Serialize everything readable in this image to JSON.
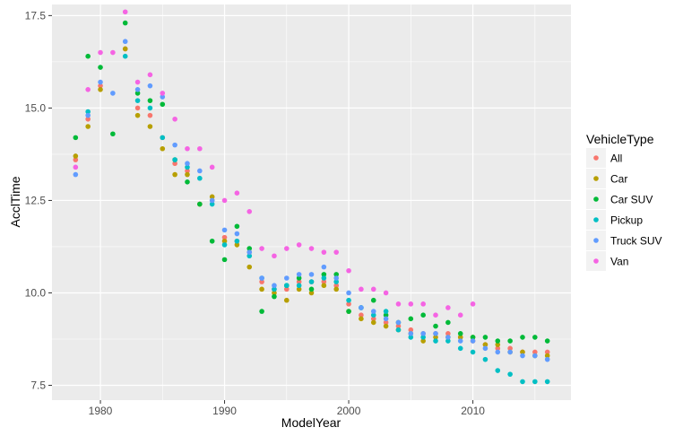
{
  "chart_data": {
    "type": "scatter",
    "xlabel": "ModelYear",
    "ylabel": "AcclTime",
    "xlim": [
      1976.1,
      2017.9
    ],
    "ylim": [
      7.1,
      17.8
    ],
    "xticks": [
      1980,
      1990,
      2000,
      2010
    ],
    "yticks": [
      7.5,
      10.0,
      12.5,
      15.0,
      17.5
    ],
    "grid": true,
    "background": "#ebebeb",
    "legend": {
      "title": "VehicleType",
      "position": "right"
    },
    "series": [
      {
        "name": "All",
        "color": "#F8766D",
        "points": [
          [
            1978,
            13.6
          ],
          [
            1979,
            14.7
          ],
          [
            1980,
            15.6
          ],
          [
            1982,
            16.6
          ],
          [
            1983,
            15.0
          ],
          [
            1984,
            14.8
          ],
          [
            1985,
            14.2
          ],
          [
            1986,
            13.5
          ],
          [
            1987,
            13.3
          ],
          [
            1988,
            12.4
          ],
          [
            1989,
            12.5
          ],
          [
            1990,
            11.5
          ],
          [
            1991,
            11.4
          ],
          [
            1992,
            11.1
          ],
          [
            1993,
            10.3
          ],
          [
            1994,
            10.1
          ],
          [
            1995,
            10.1
          ],
          [
            1996,
            10.3
          ],
          [
            1997,
            10.3
          ],
          [
            1998,
            10.3
          ],
          [
            1999,
            10.2
          ],
          [
            2000,
            9.7
          ],
          [
            2001,
            9.4
          ],
          [
            2002,
            9.3
          ],
          [
            2003,
            9.2
          ],
          [
            2004,
            9.1
          ],
          [
            2005,
            9.0
          ],
          [
            2006,
            8.9
          ],
          [
            2007,
            8.9
          ],
          [
            2008,
            8.9
          ],
          [
            2009,
            8.8
          ],
          [
            2010,
            8.7
          ],
          [
            2011,
            8.6
          ],
          [
            2012,
            8.5
          ],
          [
            2013,
            8.5
          ],
          [
            2014,
            8.4
          ],
          [
            2015,
            8.4
          ],
          [
            2016,
            8.4
          ]
        ]
      },
      {
        "name": "Car",
        "color": "#B79F00",
        "points": [
          [
            1978,
            13.7
          ],
          [
            1979,
            14.5
          ],
          [
            1980,
            15.5
          ],
          [
            1982,
            16.6
          ],
          [
            1983,
            14.8
          ],
          [
            1984,
            14.5
          ],
          [
            1985,
            13.9
          ],
          [
            1986,
            13.2
          ],
          [
            1987,
            13.2
          ],
          [
            1988,
            12.4
          ],
          [
            1989,
            12.6
          ],
          [
            1990,
            11.4
          ],
          [
            1991,
            11.3
          ],
          [
            1992,
            10.7
          ],
          [
            1993,
            10.1
          ],
          [
            1994,
            10.0
          ],
          [
            1995,
            9.8
          ],
          [
            1996,
            10.1
          ],
          [
            1997,
            10.0
          ],
          [
            1998,
            10.2
          ],
          [
            1999,
            10.1
          ],
          [
            2000,
            9.5
          ],
          [
            2001,
            9.3
          ],
          [
            2002,
            9.2
          ],
          [
            2003,
            9.1
          ],
          [
            2004,
            9.0
          ],
          [
            2005,
            8.9
          ],
          [
            2006,
            8.7
          ],
          [
            2007,
            8.8
          ],
          [
            2008,
            8.8
          ],
          [
            2009,
            8.8
          ],
          [
            2010,
            8.8
          ],
          [
            2011,
            8.6
          ],
          [
            2012,
            8.6
          ],
          [
            2013,
            8.4
          ],
          [
            2014,
            8.4
          ],
          [
            2015,
            8.3
          ],
          [
            2016,
            8.3
          ]
        ]
      },
      {
        "name": "Car SUV",
        "color": "#00BA38",
        "points": [
          [
            1978,
            14.2
          ],
          [
            1979,
            16.4
          ],
          [
            1980,
            16.1
          ],
          [
            1981,
            14.3
          ],
          [
            1982,
            17.3
          ],
          [
            1983,
            15.4
          ],
          [
            1984,
            15.2
          ],
          [
            1985,
            15.1
          ],
          [
            1986,
            13.6
          ],
          [
            1987,
            13.0
          ],
          [
            1988,
            12.4
          ],
          [
            1989,
            11.4
          ],
          [
            1990,
            10.9
          ],
          [
            1991,
            11.8
          ],
          [
            1992,
            11.2
          ],
          [
            1993,
            9.5
          ],
          [
            1994,
            9.9
          ],
          [
            1995,
            10.2
          ],
          [
            1996,
            10.4
          ],
          [
            1997,
            10.1
          ],
          [
            1998,
            10.5
          ],
          [
            1999,
            10.5
          ],
          [
            2000,
            9.5
          ],
          [
            2001,
            9.6
          ],
          [
            2002,
            9.8
          ],
          [
            2003,
            9.4
          ],
          [
            2004,
            9.2
          ],
          [
            2005,
            9.3
          ],
          [
            2006,
            9.4
          ],
          [
            2007,
            9.1
          ],
          [
            2008,
            9.2
          ],
          [
            2009,
            8.9
          ],
          [
            2010,
            8.8
          ],
          [
            2011,
            8.8
          ],
          [
            2012,
            8.7
          ],
          [
            2013,
            8.7
          ],
          [
            2014,
            8.8
          ],
          [
            2015,
            8.8
          ],
          [
            2016,
            8.7
          ]
        ]
      },
      {
        "name": "Pickup",
        "color": "#00BFC4",
        "points": [
          [
            1979,
            14.9
          ],
          [
            1982,
            16.4
          ],
          [
            1983,
            15.2
          ],
          [
            1984,
            15.0
          ],
          [
            1985,
            14.2
          ],
          [
            1986,
            13.6
          ],
          [
            1987,
            13.4
          ],
          [
            1988,
            13.1
          ],
          [
            1989,
            12.4
          ],
          [
            1990,
            11.3
          ],
          [
            1991,
            11.4
          ],
          [
            1992,
            11.0
          ],
          [
            1993,
            10.4
          ],
          [
            1994,
            10.1
          ],
          [
            1995,
            10.2
          ],
          [
            1996,
            10.2
          ],
          [
            1997,
            10.3
          ],
          [
            1998,
            10.4
          ],
          [
            1999,
            10.3
          ],
          [
            2000,
            9.8
          ],
          [
            2001,
            9.6
          ],
          [
            2002,
            9.4
          ],
          [
            2003,
            9.5
          ],
          [
            2004,
            9.0
          ],
          [
            2005,
            8.8
          ],
          [
            2006,
            8.8
          ],
          [
            2007,
            8.7
          ],
          [
            2008,
            8.7
          ],
          [
            2009,
            8.5
          ],
          [
            2010,
            8.4
          ],
          [
            2011,
            8.2
          ],
          [
            2012,
            7.9
          ],
          [
            2013,
            7.8
          ],
          [
            2014,
            7.6
          ],
          [
            2015,
            7.6
          ],
          [
            2016,
            7.6
          ]
        ]
      },
      {
        "name": "Truck SUV",
        "color": "#619CFF",
        "points": [
          [
            1978,
            13.2
          ],
          [
            1979,
            14.8
          ],
          [
            1980,
            15.7
          ],
          [
            1981,
            15.4
          ],
          [
            1982,
            16.8
          ],
          [
            1983,
            15.5
          ],
          [
            1984,
            15.6
          ],
          [
            1985,
            15.3
          ],
          [
            1986,
            14.0
          ],
          [
            1987,
            13.5
          ],
          [
            1988,
            13.3
          ],
          [
            1989,
            12.5
          ],
          [
            1990,
            11.7
          ],
          [
            1991,
            11.6
          ],
          [
            1992,
            11.1
          ],
          [
            1993,
            10.4
          ],
          [
            1994,
            10.2
          ],
          [
            1995,
            10.4
          ],
          [
            1996,
            10.5
          ],
          [
            1997,
            10.5
          ],
          [
            1998,
            10.7
          ],
          [
            1999,
            10.4
          ],
          [
            2000,
            10.0
          ],
          [
            2001,
            9.6
          ],
          [
            2002,
            9.5
          ],
          [
            2003,
            9.3
          ],
          [
            2004,
            9.2
          ],
          [
            2005,
            8.9
          ],
          [
            2006,
            8.9
          ],
          [
            2007,
            8.9
          ],
          [
            2008,
            8.8
          ],
          [
            2009,
            8.7
          ],
          [
            2010,
            8.7
          ],
          [
            2011,
            8.5
          ],
          [
            2012,
            8.4
          ],
          [
            2013,
            8.4
          ],
          [
            2014,
            8.3
          ],
          [
            2015,
            8.3
          ],
          [
            2016,
            8.2
          ]
        ]
      },
      {
        "name": "Van",
        "color": "#F564E3",
        "points": [
          [
            1978,
            13.4
          ],
          [
            1979,
            15.5
          ],
          [
            1980,
            16.5
          ],
          [
            1981,
            16.5
          ],
          [
            1982,
            17.6
          ],
          [
            1983,
            15.7
          ],
          [
            1984,
            15.9
          ],
          [
            1985,
            15.4
          ],
          [
            1986,
            14.7
          ],
          [
            1987,
            13.9
          ],
          [
            1988,
            13.9
          ],
          [
            1989,
            13.4
          ],
          [
            1990,
            12.5
          ],
          [
            1991,
            12.7
          ],
          [
            1992,
            12.2
          ],
          [
            1993,
            11.2
          ],
          [
            1994,
            11.0
          ],
          [
            1995,
            11.2
          ],
          [
            1996,
            11.3
          ],
          [
            1997,
            11.2
          ],
          [
            1998,
            11.1
          ],
          [
            1999,
            11.1
          ],
          [
            2000,
            10.6
          ],
          [
            2001,
            10.1
          ],
          [
            2002,
            10.1
          ],
          [
            2003,
            10.0
          ],
          [
            2004,
            9.7
          ],
          [
            2005,
            9.7
          ],
          [
            2006,
            9.7
          ],
          [
            2007,
            9.4
          ],
          [
            2008,
            9.6
          ],
          [
            2009,
            9.4
          ],
          [
            2010,
            9.7
          ]
        ]
      }
    ]
  }
}
